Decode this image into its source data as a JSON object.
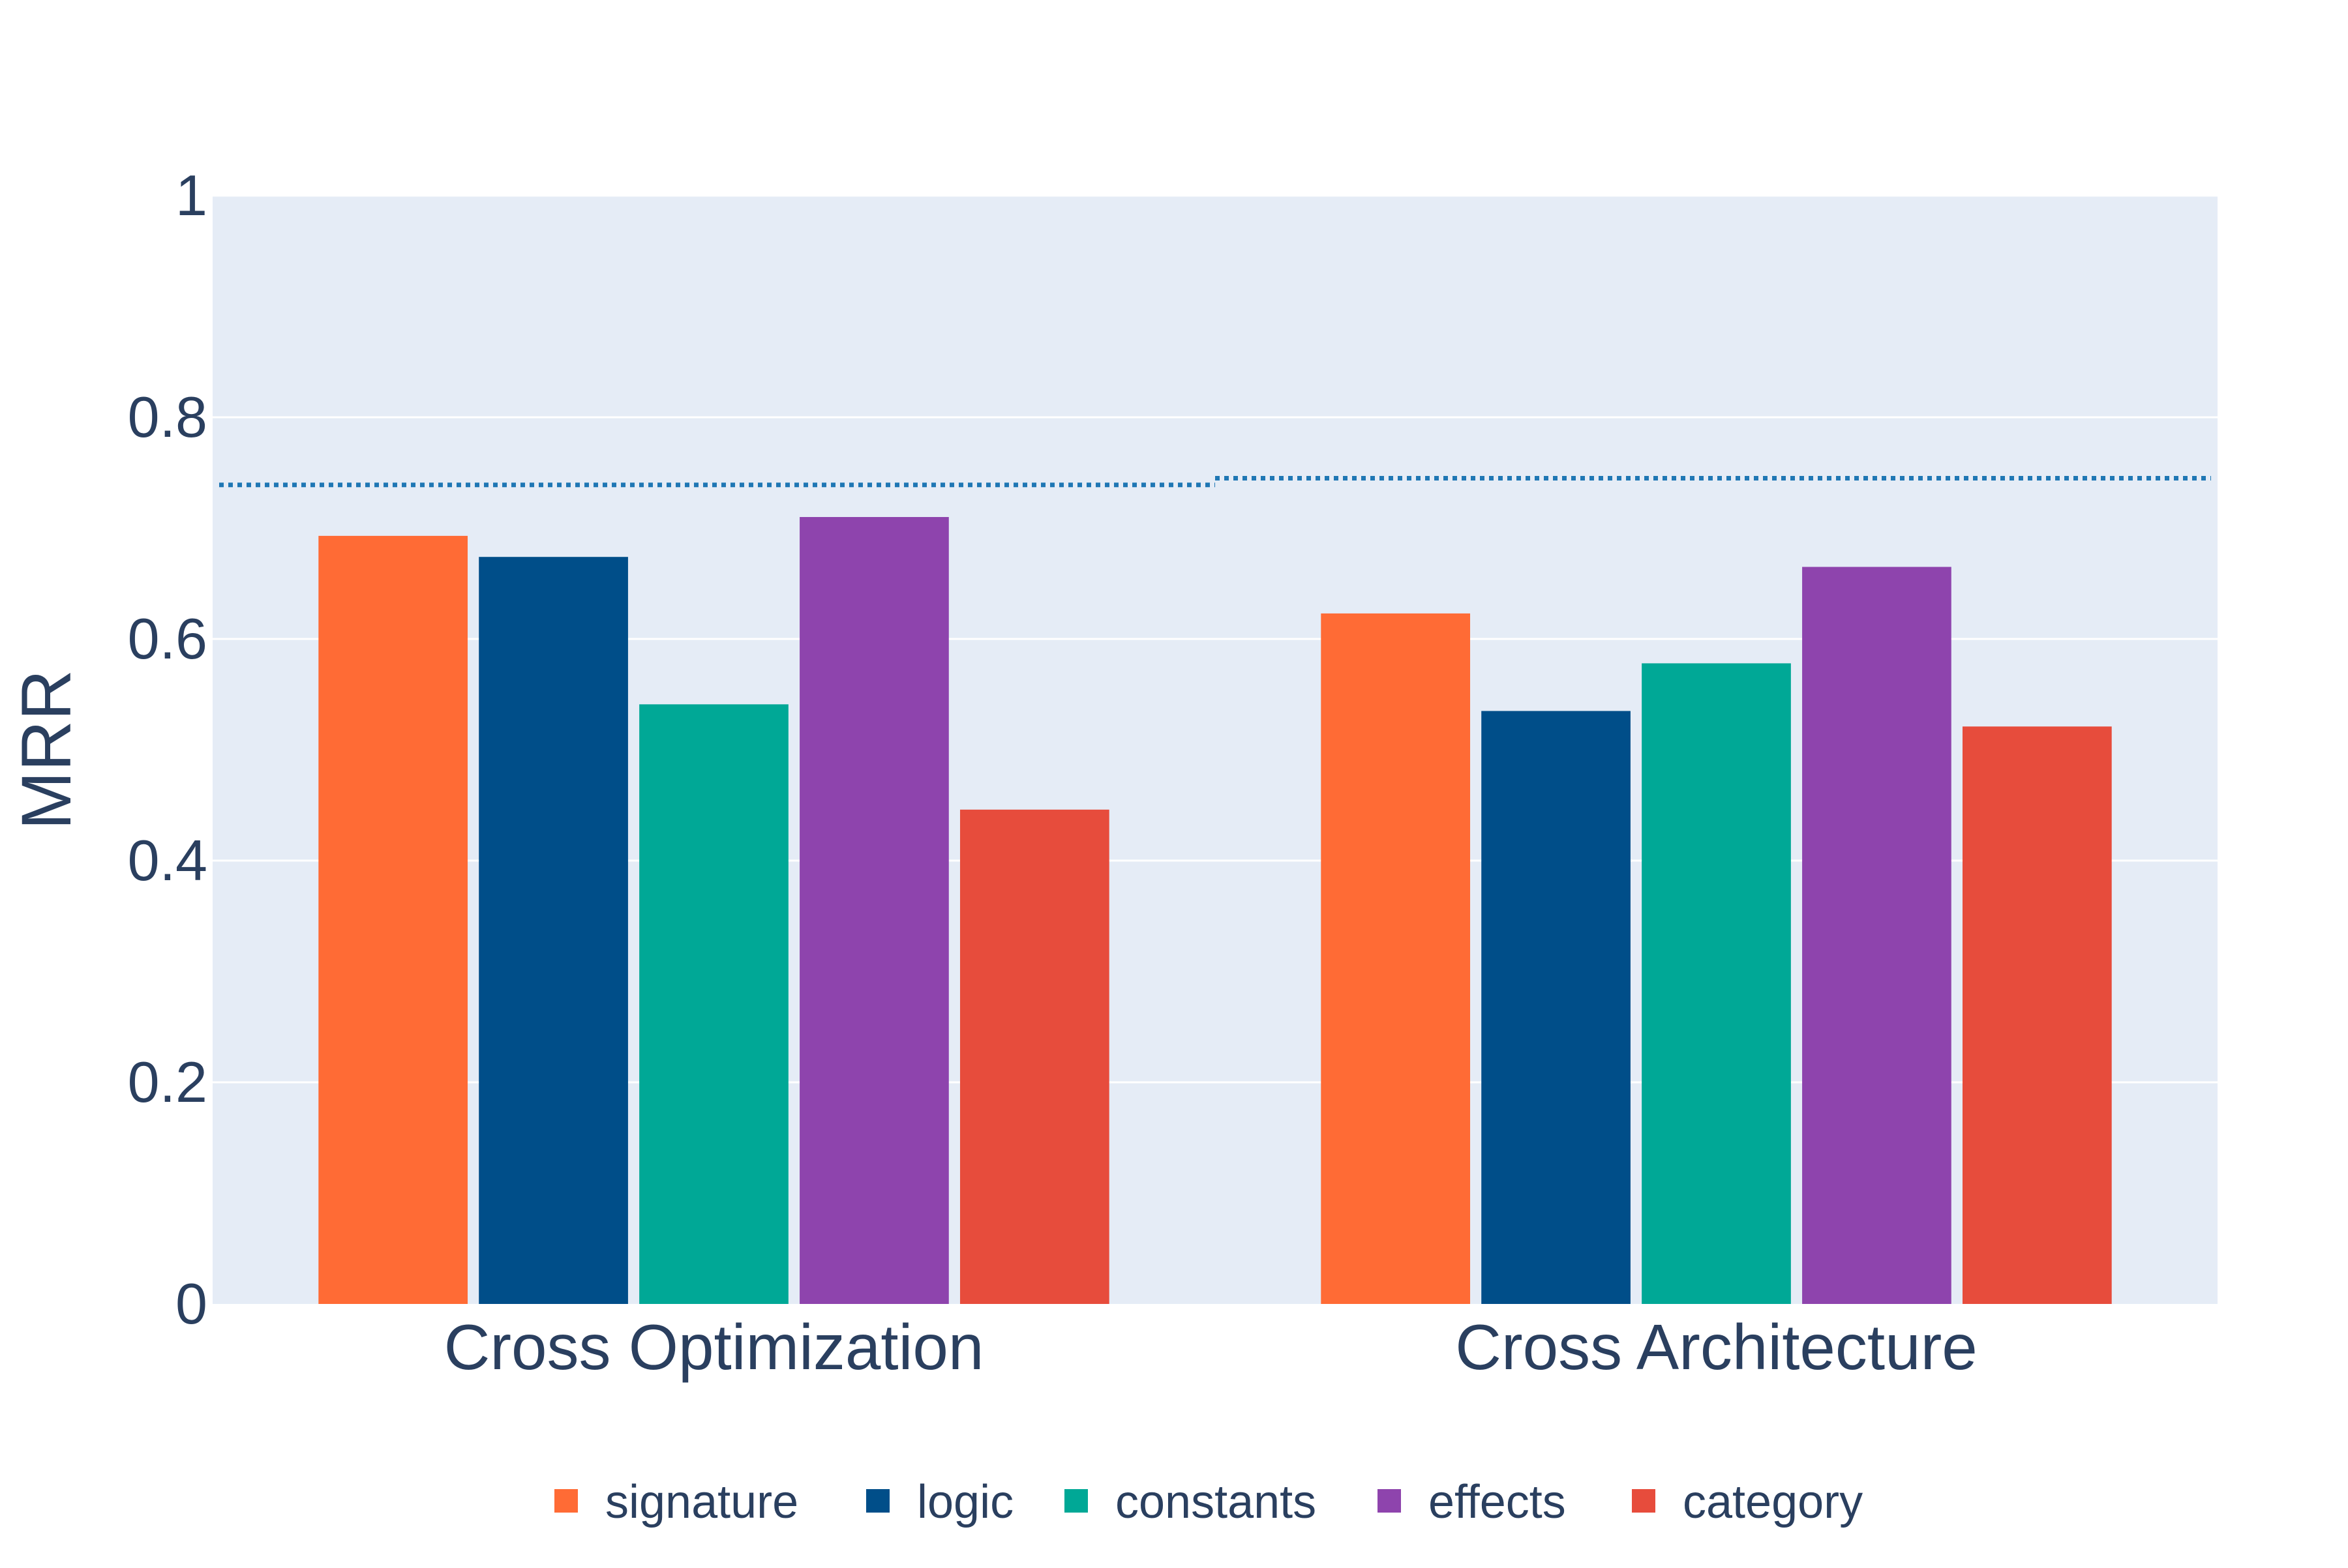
{
  "chart_data": {
    "type": "bar",
    "ylabel": "MRR",
    "ylim": [
      0,
      1
    ],
    "yticks": [
      "0",
      "0.2",
      "0.4",
      "0.6",
      "0.8",
      "1"
    ],
    "ytick_values": [
      0,
      0.2,
      0.4,
      0.6,
      0.8,
      1
    ],
    "grid": true,
    "legend_position": "bottom-center",
    "categories": [
      "Cross Optimization",
      "Cross Architecture"
    ],
    "series": [
      {
        "name": "signature",
        "color": "#ff6b35",
        "values": [
          0.693,
          0.623
        ]
      },
      {
        "name": "logic",
        "color": "#004e89",
        "values": [
          0.674,
          0.535
        ]
      },
      {
        "name": "constants",
        "color": "#00a896",
        "values": [
          0.541,
          0.578
        ]
      },
      {
        "name": "effects",
        "color": "#8e44ad",
        "values": [
          0.71,
          0.665
        ]
      },
      {
        "name": "category",
        "color": "#e74c3c",
        "values": [
          0.446,
          0.521
        ]
      }
    ],
    "reference_lines": [
      {
        "category": "Cross Optimization",
        "value": 0.739,
        "color": "#1f77b4",
        "style": "dotted"
      },
      {
        "category": "Cross Architecture",
        "value": 0.745,
        "color": "#1f77b4",
        "style": "dotted"
      }
    ],
    "plot_background": "#e5ecf6",
    "grid_color": "#ffffff"
  }
}
